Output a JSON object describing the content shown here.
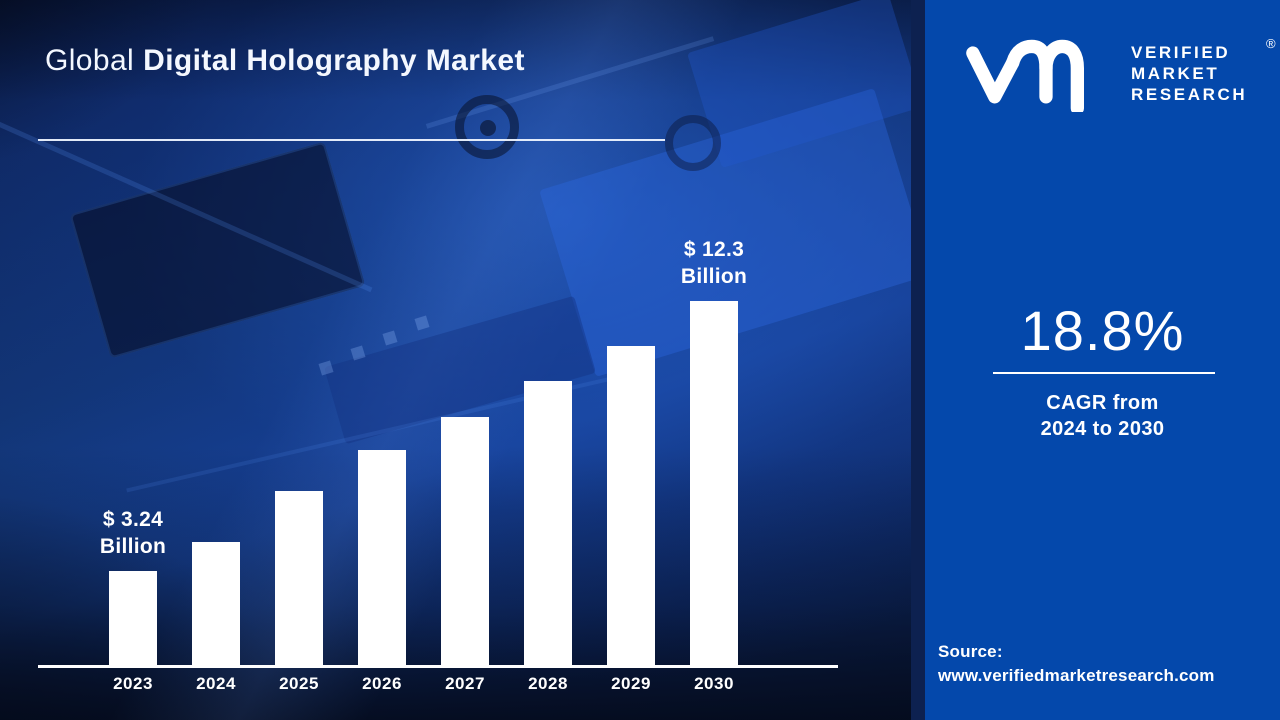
{
  "title": {
    "prefix": "Global",
    "emphasis": "Digital Holography Market"
  },
  "brand": {
    "monogram_icon": "vmr-monogram",
    "lines": [
      "VERIFIED",
      "MARKET",
      "RESEARCH"
    ],
    "registered_mark": "®"
  },
  "stats": {
    "cagr_value": "18.8%",
    "caption_line1": "CAGR from",
    "caption_line2": "2024 to 2030"
  },
  "source": {
    "label": "Source:",
    "url": "www.verifiedmarketresearch.com"
  },
  "chart_data": {
    "type": "bar",
    "title": "Global Digital Holography Market",
    "categories": [
      "2023",
      "2024",
      "2025",
      "2026",
      "2027",
      "2028",
      "2029",
      "2030"
    ],
    "values": [
      3.24,
      4.2,
      5.9,
      7.3,
      8.4,
      9.6,
      10.8,
      12.3
    ],
    "unit": "USD Billion",
    "ylim": [
      0,
      12.3
    ],
    "xlabel": "",
    "ylabel": "",
    "grid": false,
    "legend": false,
    "bar_color": "#ffffff",
    "annotations": [
      {
        "category": "2023",
        "lines": [
          "$ 3.24",
          "Billion"
        ]
      },
      {
        "category": "2030",
        "lines": [
          "$ 12.3",
          "Billion"
        ]
      }
    ]
  },
  "colors": {
    "panel_blue": "#0448ab",
    "separator_navy": "#0d2150",
    "bar_white": "#ffffff",
    "text_white": "#ffffff"
  }
}
